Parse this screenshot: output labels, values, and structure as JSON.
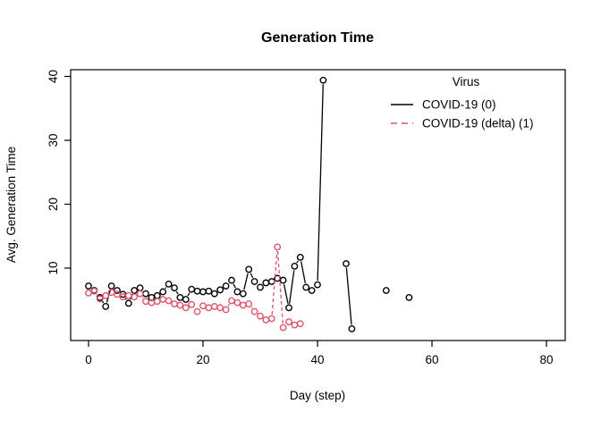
{
  "title": "Generation Time",
  "axes": {
    "x_label": "Day (step)",
    "y_label": "Avg. Generation Time"
  },
  "legend": {
    "title": "Virus",
    "entries": [
      {
        "label": "COVID-19 (0)",
        "color": "#000000",
        "linestyle": "solid"
      },
      {
        "label": "COVID-19 (delta) (1)",
        "color": "#DF536B",
        "linestyle": "dashed"
      }
    ]
  },
  "chart_data": {
    "type": "line",
    "title": "Generation Time",
    "xlabel": "Day (step)",
    "ylabel": "Avg. Generation Time",
    "xlim": [
      -3,
      83
    ],
    "ylim": [
      -1.3,
      41
    ],
    "x_ticks": [
      0,
      20,
      40,
      60,
      80
    ],
    "y_ticks": [
      10,
      20,
      30,
      40
    ],
    "grid": false,
    "legend_position": "top-right",
    "marker": "open-circle",
    "series": [
      {
        "name": "COVID-19 (0)",
        "color": "#000000",
        "linestyle": "solid",
        "points": [
          [
            0,
            7.2
          ],
          [
            1,
            6.5
          ],
          [
            2,
            5.4
          ],
          [
            3,
            4.0
          ],
          [
            4,
            7.2
          ],
          [
            5,
            6.5
          ],
          [
            6,
            5.9
          ],
          [
            7,
            4.5
          ],
          [
            8,
            6.5
          ],
          [
            9,
            6.9
          ],
          [
            10,
            6.0
          ],
          [
            11,
            5.4
          ],
          [
            12,
            5.7
          ],
          [
            13,
            6.3
          ],
          [
            14,
            7.5
          ],
          [
            15,
            6.9
          ],
          [
            16,
            5.4
          ],
          [
            17,
            5.1
          ],
          [
            18,
            6.7
          ],
          [
            19,
            6.4
          ],
          [
            20,
            6.3
          ],
          [
            21,
            6.4
          ],
          [
            22,
            6.0
          ],
          [
            23,
            6.6
          ],
          [
            24,
            7.2
          ],
          [
            25,
            8.1
          ],
          [
            26,
            6.3
          ],
          [
            27,
            6.0
          ],
          [
            28,
            9.8
          ],
          [
            29,
            7.9
          ],
          [
            30,
            7.0
          ],
          [
            31,
            7.7
          ],
          [
            32,
            7.9
          ],
          [
            33,
            8.4
          ],
          [
            34,
            8.1
          ],
          [
            35,
            3.8
          ],
          [
            36,
            10.3
          ],
          [
            37,
            11.7
          ],
          [
            38,
            7.0
          ],
          [
            39,
            6.5
          ],
          [
            40,
            7.4
          ],
          [
            41,
            39.4
          ],
          [
            45,
            10.7
          ],
          [
            46,
            0.5
          ],
          [
            52,
            6.5
          ],
          [
            56,
            5.4
          ]
        ]
      },
      {
        "name": "COVID-19 (delta) (1)",
        "color": "#DF536B",
        "linestyle": "dashed",
        "points": [
          [
            0,
            6.1
          ],
          [
            1,
            6.4
          ],
          [
            2,
            5.2
          ],
          [
            3,
            5.7
          ],
          [
            4,
            6.2
          ],
          [
            5,
            5.9
          ],
          [
            6,
            5.5
          ],
          [
            7,
            5.7
          ],
          [
            8,
            5.5
          ],
          [
            9,
            6.0
          ],
          [
            10,
            4.8
          ],
          [
            11,
            4.6
          ],
          [
            12,
            4.8
          ],
          [
            13,
            5.1
          ],
          [
            14,
            4.9
          ],
          [
            15,
            4.4
          ],
          [
            16,
            4.2
          ],
          [
            17,
            3.8
          ],
          [
            18,
            4.3
          ],
          [
            19,
            3.2
          ],
          [
            20,
            4.1
          ],
          [
            21,
            3.8
          ],
          [
            22,
            4.0
          ],
          [
            23,
            3.8
          ],
          [
            24,
            3.5
          ],
          [
            25,
            4.9
          ],
          [
            26,
            4.6
          ],
          [
            27,
            4.2
          ],
          [
            28,
            4.4
          ],
          [
            29,
            3.2
          ],
          [
            30,
            2.5
          ],
          [
            31,
            1.9
          ],
          [
            32,
            2.1
          ],
          [
            33,
            13.3
          ],
          [
            34,
            0.7
          ],
          [
            35,
            1.6
          ],
          [
            36,
            1.1
          ],
          [
            37,
            1.3
          ]
        ]
      }
    ]
  }
}
